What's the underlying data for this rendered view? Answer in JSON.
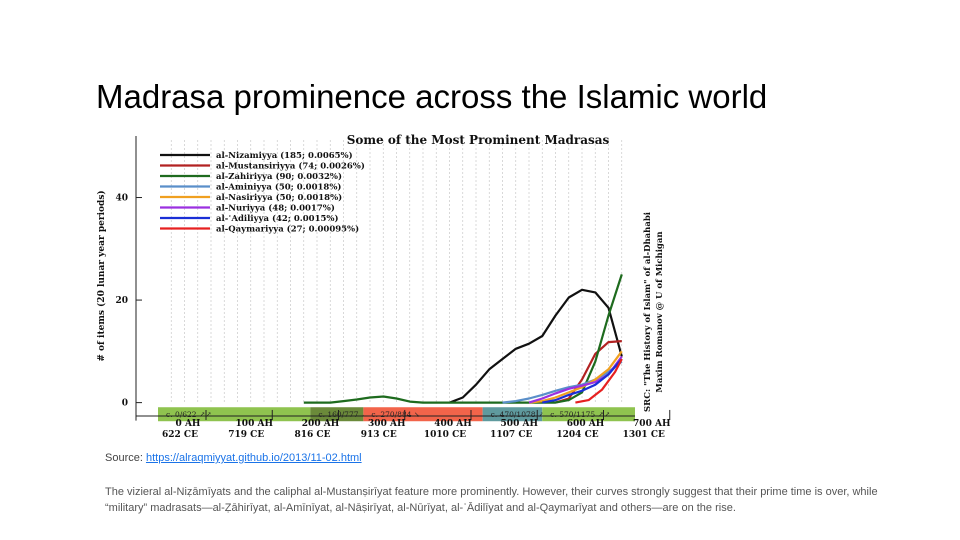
{
  "slide": {
    "title": "Madrasa prominence across the Islamic world",
    "source_label": "Source: ",
    "source_link": "https://alraqmiyyat.github.io/2013/11-02.html",
    "caption": "The vizieral al-Niẓāmīyats and the caliphal al-Mustanṣirīyat feature more prominently. However, their curves strongly suggest that their prime time is over, while “military” madrasats—al-Ẓāhirīyat, al-Amīnīyat, al-Nāṣirīyat, al-Nūrīyat, al-ʿĀdilīyat and al-Qaymarīyat and others—are on the rise."
  },
  "chart_data": {
    "type": "line",
    "title": "Some of the Most Prominent Madrasas",
    "ylabel": "# of items (20 lunar year periods)",
    "side_note": [
      "SRC: \"The History of Islam\" of al-Dhahabi",
      "Maxim Romanov @ U of Michigan"
    ],
    "xlim": [
      0,
      720
    ],
    "ylim": [
      -3,
      52
    ],
    "x_ticks": [
      {
        "x": 0,
        "ah": "0 AH",
        "ce": "622 CE"
      },
      {
        "x": 100,
        "ah": "100 AH",
        "ce": "719 CE"
      },
      {
        "x": 200,
        "ah": "200 AH",
        "ce": "816 CE"
      },
      {
        "x": 300,
        "ah": "300 AH",
        "ce": "913 CE"
      },
      {
        "x": 400,
        "ah": "400 AH",
        "ce": "1010 CE"
      },
      {
        "x": 500,
        "ah": "500 AH",
        "ce": "1107 CE"
      },
      {
        "x": 600,
        "ah": "600 AH",
        "ce": "1204 CE"
      },
      {
        "x": 700,
        "ah": "700 AH",
        "ce": "1301 CE"
      }
    ],
    "y_ticks": [
      0,
      20,
      40
    ],
    "grid": true,
    "legend_position": "top-left",
    "series": [
      {
        "name": "al-Nizamiyya (185; 0.0065%)",
        "color": "#111111",
        "x": [
          440,
          460,
          480,
          500,
          520,
          540,
          560,
          580,
          600,
          620,
          640,
          660,
          680,
          700
        ],
        "y": [
          0,
          1,
          3.5,
          6.5,
          8.5,
          10.5,
          11.5,
          13,
          17,
          20.5,
          22,
          21.5,
          18.5,
          9
        ]
      },
      {
        "name": "al-Mustansiriyya (74; 0.0026%)",
        "color": "#b22222",
        "x": [
          600,
          620,
          640,
          660,
          680,
          700
        ],
        "y": [
          0,
          0.8,
          4.5,
          9.5,
          11.8,
          12
        ]
      },
      {
        "name": "al-Zahiriyya (90; 0.0032%)",
        "color": "#1e6b1e",
        "x": [
          220,
          240,
          260,
          280,
          300,
          320,
          340,
          360,
          380,
          400,
          420,
          440,
          460,
          480,
          500,
          520,
          540,
          560,
          580,
          600,
          620,
          640,
          660,
          680,
          700
        ],
        "y": [
          0,
          0,
          0,
          0.3,
          0.6,
          1,
          1.2,
          0.8,
          0.2,
          0,
          0,
          0,
          0,
          0,
          0,
          0,
          0,
          0,
          0,
          0,
          0.5,
          2,
          8,
          17,
          25
        ]
      },
      {
        "name": "al-Aminiyya (50; 0.0018%)",
        "color": "#5a8fc9",
        "x": [
          520,
          540,
          560,
          580,
          600,
          620,
          640,
          660,
          680,
          700
        ],
        "y": [
          0,
          0.3,
          0.8,
          1.5,
          2.3,
          3,
          3.5,
          4.5,
          6,
          8
        ]
      },
      {
        "name": "al-Nasiriyya (50; 0.0018%)",
        "color": "#f0a020",
        "x": [
          560,
          580,
          600,
          620,
          640,
          660,
          680,
          700
        ],
        "y": [
          0,
          0.3,
          1,
          2,
          3,
          4.5,
          6.5,
          10
        ]
      },
      {
        "name": "al-Nuriyya (48; 0.0017%)",
        "color": "#9b30e0",
        "x": [
          560,
          580,
          600,
          620,
          640,
          660,
          680,
          700
        ],
        "y": [
          0,
          0.8,
          1.8,
          2.7,
          3.3,
          4,
          5.5,
          9
        ]
      },
      {
        "name": "al-ʿAdiliyya (42; 0.0015%)",
        "color": "#1a2fd6",
        "x": [
          580,
          600,
          620,
          640,
          660,
          680,
          700
        ],
        "y": [
          0,
          0.5,
          1.5,
          2.3,
          3.5,
          5.5,
          8.5
        ]
      },
      {
        "name": "al-Qaymariyya (27; 0.00095%)",
        "color": "#e62020",
        "x": [
          630,
          650,
          670,
          690,
          700
        ],
        "y": [
          0,
          0.5,
          2.5,
          6,
          8.5
        ]
      }
    ],
    "period_bands": [
      {
        "label": "c. 0/622 ↗↗",
        "start": 0,
        "end": 230,
        "color": "#8fc34f"
      },
      {
        "label": "c. 160/777 ↗→",
        "start": 230,
        "end": 310,
        "color": "#6b8a3a"
      },
      {
        "label": "c. 270/884 ↘",
        "start": 310,
        "end": 490,
        "color": "#f2644a"
      },
      {
        "label": "c. 470/1078 ↗",
        "start": 490,
        "end": 580,
        "color": "#5f9a9e"
      },
      {
        "label": "c. 570/1175 ↗↗",
        "start": 580,
        "end": 720,
        "color": "#8fc34f"
      }
    ]
  }
}
